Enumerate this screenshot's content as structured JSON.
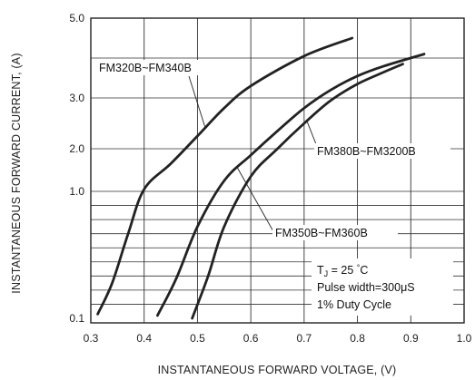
{
  "chart_data": {
    "type": "line",
    "title": "",
    "xlabel": "INSTANTANEOUS FORWARD VOLTAGE, (V)",
    "ylabel": "INSTANTANEOUS FORWARD CURRENT, (A)",
    "x_ticks": [
      "0.3",
      "0.4",
      "0.5",
      "0.6",
      "0.7",
      "0.8",
      "0.9",
      "1.0"
    ],
    "y_ticks": [
      "0.1",
      "1.0",
      "2.0",
      "3.0",
      "5.0"
    ],
    "xlim": [
      0.3,
      1.0
    ],
    "grid": true,
    "series": [
      {
        "name": "FM320B~FM340B",
        "color": "#222222",
        "points": [
          [
            0.313,
            0.13
          ],
          [
            0.34,
            0.35
          ],
          [
            0.37,
            0.7
          ],
          [
            0.4,
            1.05
          ],
          [
            0.45,
            1.65
          ],
          [
            0.5,
            2.25
          ],
          [
            0.55,
            2.8
          ],
          [
            0.6,
            3.3
          ],
          [
            0.7,
            4.05
          ],
          [
            0.79,
            4.5
          ]
        ]
      },
      {
        "name": "FM350B~FM360B",
        "color": "#222222",
        "points": [
          [
            0.425,
            0.12
          ],
          [
            0.46,
            0.38
          ],
          [
            0.5,
            0.75
          ],
          [
            0.55,
            1.25
          ],
          [
            0.6,
            1.85
          ],
          [
            0.65,
            2.35
          ],
          [
            0.7,
            2.8
          ],
          [
            0.75,
            3.2
          ],
          [
            0.8,
            3.55
          ],
          [
            0.85,
            3.8
          ],
          [
            0.925,
            4.1
          ]
        ]
      },
      {
        "name": "FM380B~FM3200B",
        "color": "#222222",
        "points": [
          [
            0.49,
            0.1
          ],
          [
            0.52,
            0.4
          ],
          [
            0.55,
            0.75
          ],
          [
            0.6,
            1.35
          ],
          [
            0.65,
            2.0
          ],
          [
            0.7,
            2.5
          ],
          [
            0.75,
            2.95
          ],
          [
            0.8,
            3.35
          ],
          [
            0.85,
            3.65
          ],
          [
            0.885,
            3.85
          ]
        ]
      }
    ],
    "annotations": {
      "conditions": [
        "T",
        "J",
        " = 25 ",
        "°",
        "C",
        "Pulse width=300μS",
        "1% Duty Cycle"
      ]
    }
  }
}
